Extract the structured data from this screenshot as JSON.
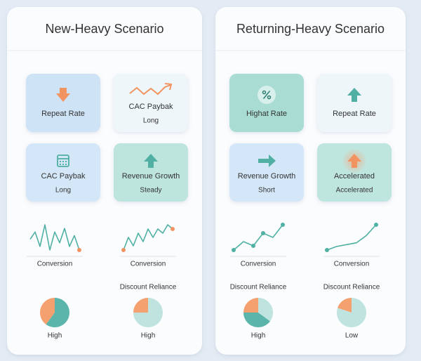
{
  "panels": [
    {
      "title": "New-Heavy Scenario",
      "tiles": [
        {
          "label": "Repeat Rate",
          "color": "#cfe3f7"
        },
        {
          "label": "CAC Paybak",
          "sublabel": "Long",
          "color": "#eef6fa"
        },
        {
          "label": "CAC Paybak",
          "sublabel": "Long",
          "color": "#d4e7f8"
        },
        {
          "label": "Revenue Growth",
          "sublabel": "Steady",
          "color": "#bde5dd"
        }
      ],
      "sparklines": [
        {
          "label": "Conversion",
          "values": [
            5,
            7,
            3,
            9,
            2,
            7,
            4,
            8,
            3,
            6,
            2
          ]
        },
        {
          "label": "Conversion",
          "values": [
            2,
            5,
            3,
            6,
            4,
            7,
            5,
            7,
            6,
            8,
            7
          ]
        }
      ],
      "pies": [
        {
          "label": "High",
          "slices": [
            {
              "value": 40,
              "color": "#f4a06f"
            },
            {
              "value": 60,
              "color": "#5bb5aa"
            }
          ]
        },
        {
          "heading": "Discount Reliance",
          "label": "High",
          "slices": [
            {
              "value": 25,
              "color": "#f4a06f"
            },
            {
              "value": 75,
              "color": "#bfe3df"
            }
          ]
        }
      ]
    },
    {
      "title": "Returning-Heavy Scenario",
      "tiles": [
        {
          "label": "Highat Rate",
          "color": "#a9dcd2"
        },
        {
          "label": "Repeat Rate",
          "color": "#eef6fa"
        },
        {
          "label": "Revenue Growth",
          "sublabel": "Short",
          "color": "#d4e7f8"
        },
        {
          "label": "Accelerated",
          "sublabel": "Accelerated",
          "color": "#bfe5df"
        }
      ],
      "sparklines": [
        {
          "label": "Conversion",
          "values": [
            2,
            4,
            3,
            6,
            5,
            8
          ]
        },
        {
          "label": "Conversion",
          "values": [
            1,
            2,
            2.5,
            3,
            5,
            8
          ]
        }
      ],
      "pies": [
        {
          "heading": "Discount Reliance",
          "label": "High",
          "slices": [
            {
              "value": 25,
              "color": "#f4a06f"
            },
            {
              "value": 40,
              "color": "#5bb5aa"
            },
            {
              "value": 35,
              "color": "#bfe3df"
            }
          ]
        },
        {
          "heading": "Discount Reliance",
          "label": "Low",
          "slices": [
            {
              "value": 20,
              "color": "#f4a06f"
            },
            {
              "value": 80,
              "color": "#bfe3df"
            }
          ]
        }
      ]
    }
  ]
}
